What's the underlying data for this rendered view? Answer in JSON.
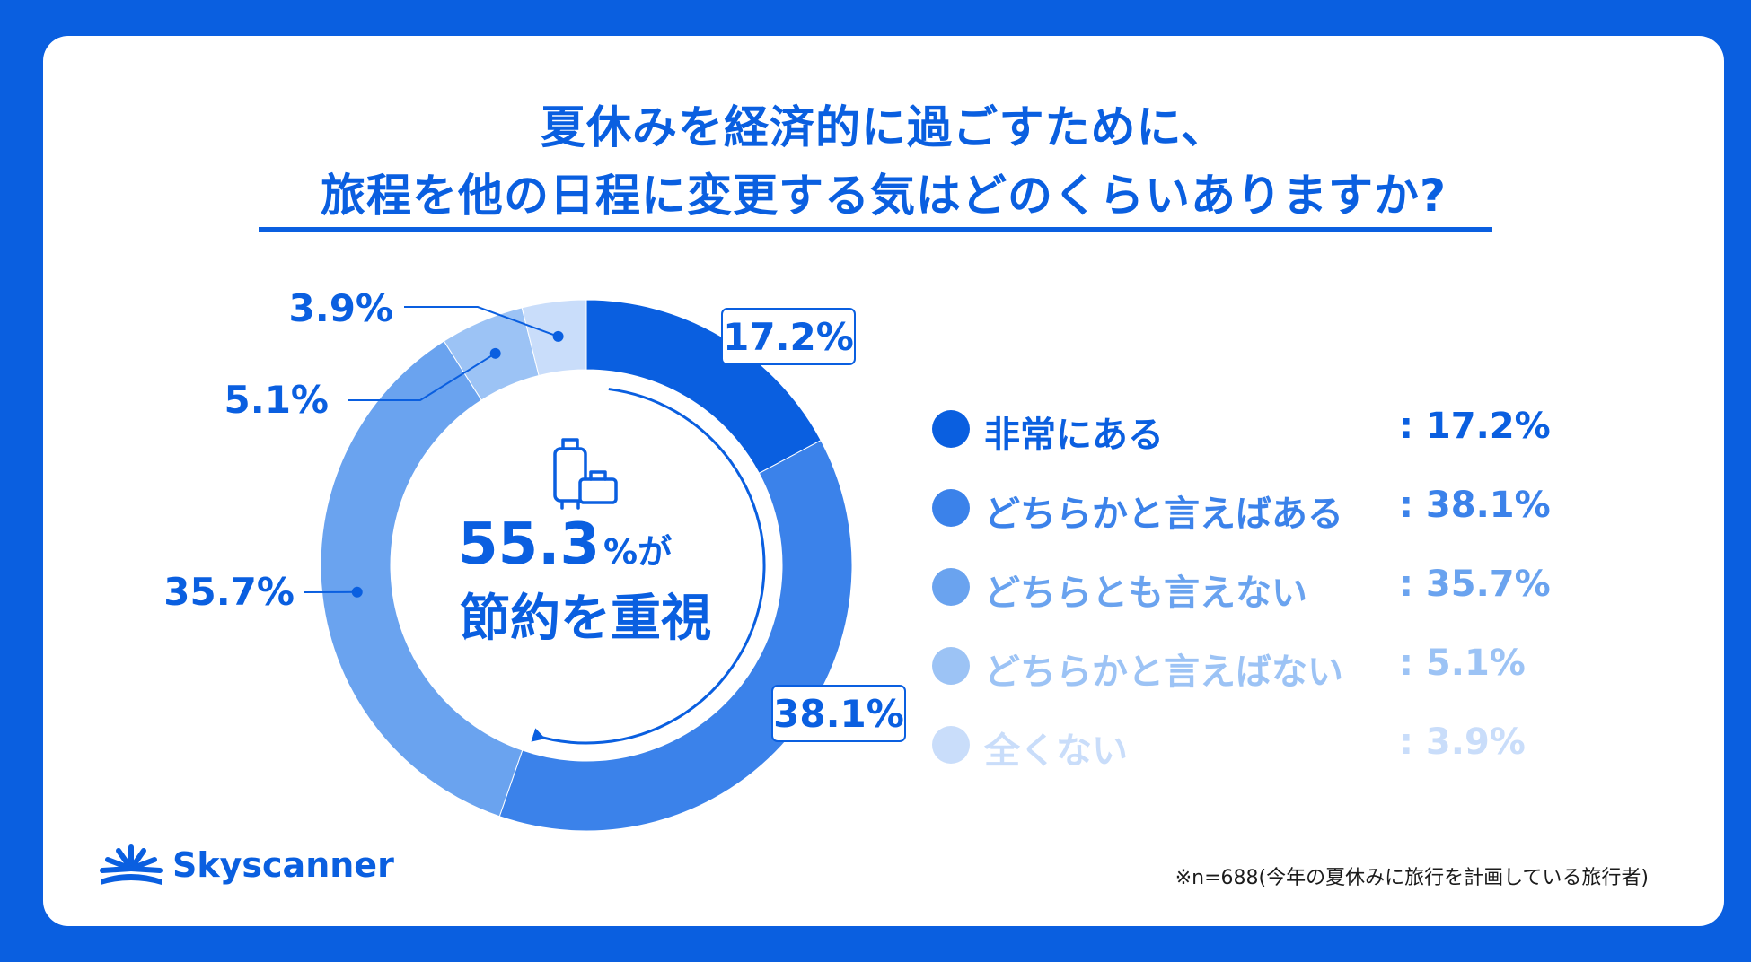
{
  "title": {
    "line1": "夏休みを経済的に過ごすために、",
    "line2": "旅程を他の日程に変更する気はどのくらいありますか?"
  },
  "center": {
    "value": "55.3",
    "unit": "%が",
    "line2": "節約を重視",
    "icon": "luggage-icon"
  },
  "chart_data": {
    "type": "pie",
    "categories": [
      "非常にある",
      "どちらかと言えばある",
      "どちらとも言えない",
      "どちらかと言えばない",
      "全くない"
    ],
    "values": [
      17.2,
      38.1,
      35.7,
      5.1,
      3.9
    ],
    "value_labels": [
      "17.2%",
      "38.1%",
      "35.7%",
      "5.1%",
      "3.9%"
    ],
    "colors": [
      "#0a5fe0",
      "#3b82ea",
      "#6aa3ef",
      "#9cc3f5",
      "#c9ddfa"
    ],
    "legend": "right",
    "donut": true
  },
  "legend_items": [
    {
      "label": "非常にある",
      "value": ": 17.2%",
      "color": "#0a5fe0"
    },
    {
      "label": "どちらかと言えばある",
      "value": ": 38.1%",
      "color": "#3b82ea"
    },
    {
      "label": "どちらとも言えない",
      "value": ": 35.7%",
      "color": "#6aa3ef"
    },
    {
      "label": "どちらかと言えばない",
      "value": ": 5.1%",
      "color": "#9cc3f5"
    },
    {
      "label": "全くない",
      "value": ": 3.9%",
      "color": "#c9ddfa"
    }
  ],
  "brand": {
    "name": "Skyscanner",
    "color": "#0a5fe0",
    "icon": "sunrise-logo-icon"
  },
  "footnote": "※n=688(今年の夏休みに旅行を計画している旅行者)"
}
